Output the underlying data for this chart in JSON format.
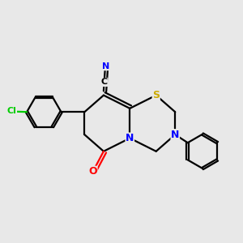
{
  "bg_color": "#e8e8e8",
  "atom_colors": {
    "C": "#000000",
    "N": "#0000ff",
    "O": "#ff0000",
    "S": "#ccaa00",
    "Cl": "#00cc00"
  },
  "bond_color": "#000000",
  "figsize": [
    3.0,
    3.0
  ],
  "dpi": 100,
  "lw": 1.6
}
